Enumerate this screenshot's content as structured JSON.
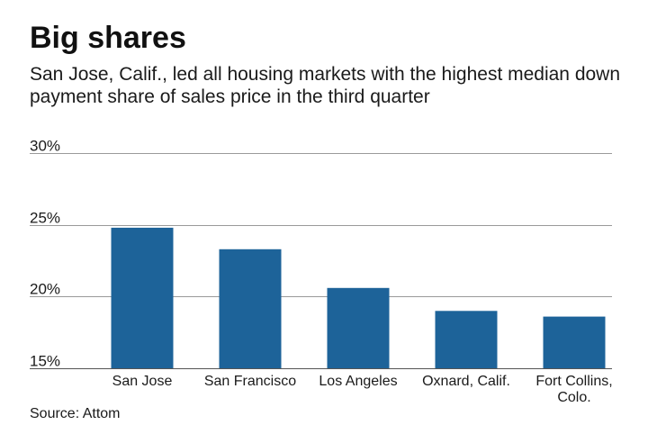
{
  "chart_data": {
    "type": "bar",
    "title": "Big shares",
    "subtitle": "San Jose, Calif., led all housing markets with the highest median down payment share of sales price in the third quarter",
    "categories": [
      "San Jose",
      "San Francisco",
      "Los Angeles",
      "Oxnard, Calif.",
      "Fort Collins, Colo."
    ],
    "category_lines": [
      [
        "San Jose"
      ],
      [
        "San Francisco"
      ],
      [
        "Los Angeles"
      ],
      [
        "Oxnard, Calif."
      ],
      [
        "Fort Collins,",
        "Colo."
      ]
    ],
    "values": [
      24.8,
      23.3,
      20.6,
      19.0,
      18.6
    ],
    "ylim": [
      15,
      30
    ],
    "yticks": [
      15,
      20,
      25,
      30
    ],
    "ytick_labels": [
      "15%",
      "20%",
      "25%",
      "30%"
    ],
    "xlabel": "",
    "ylabel": "",
    "grid": true,
    "bar_color": "#1d6399",
    "source": "Source: Attom"
  }
}
